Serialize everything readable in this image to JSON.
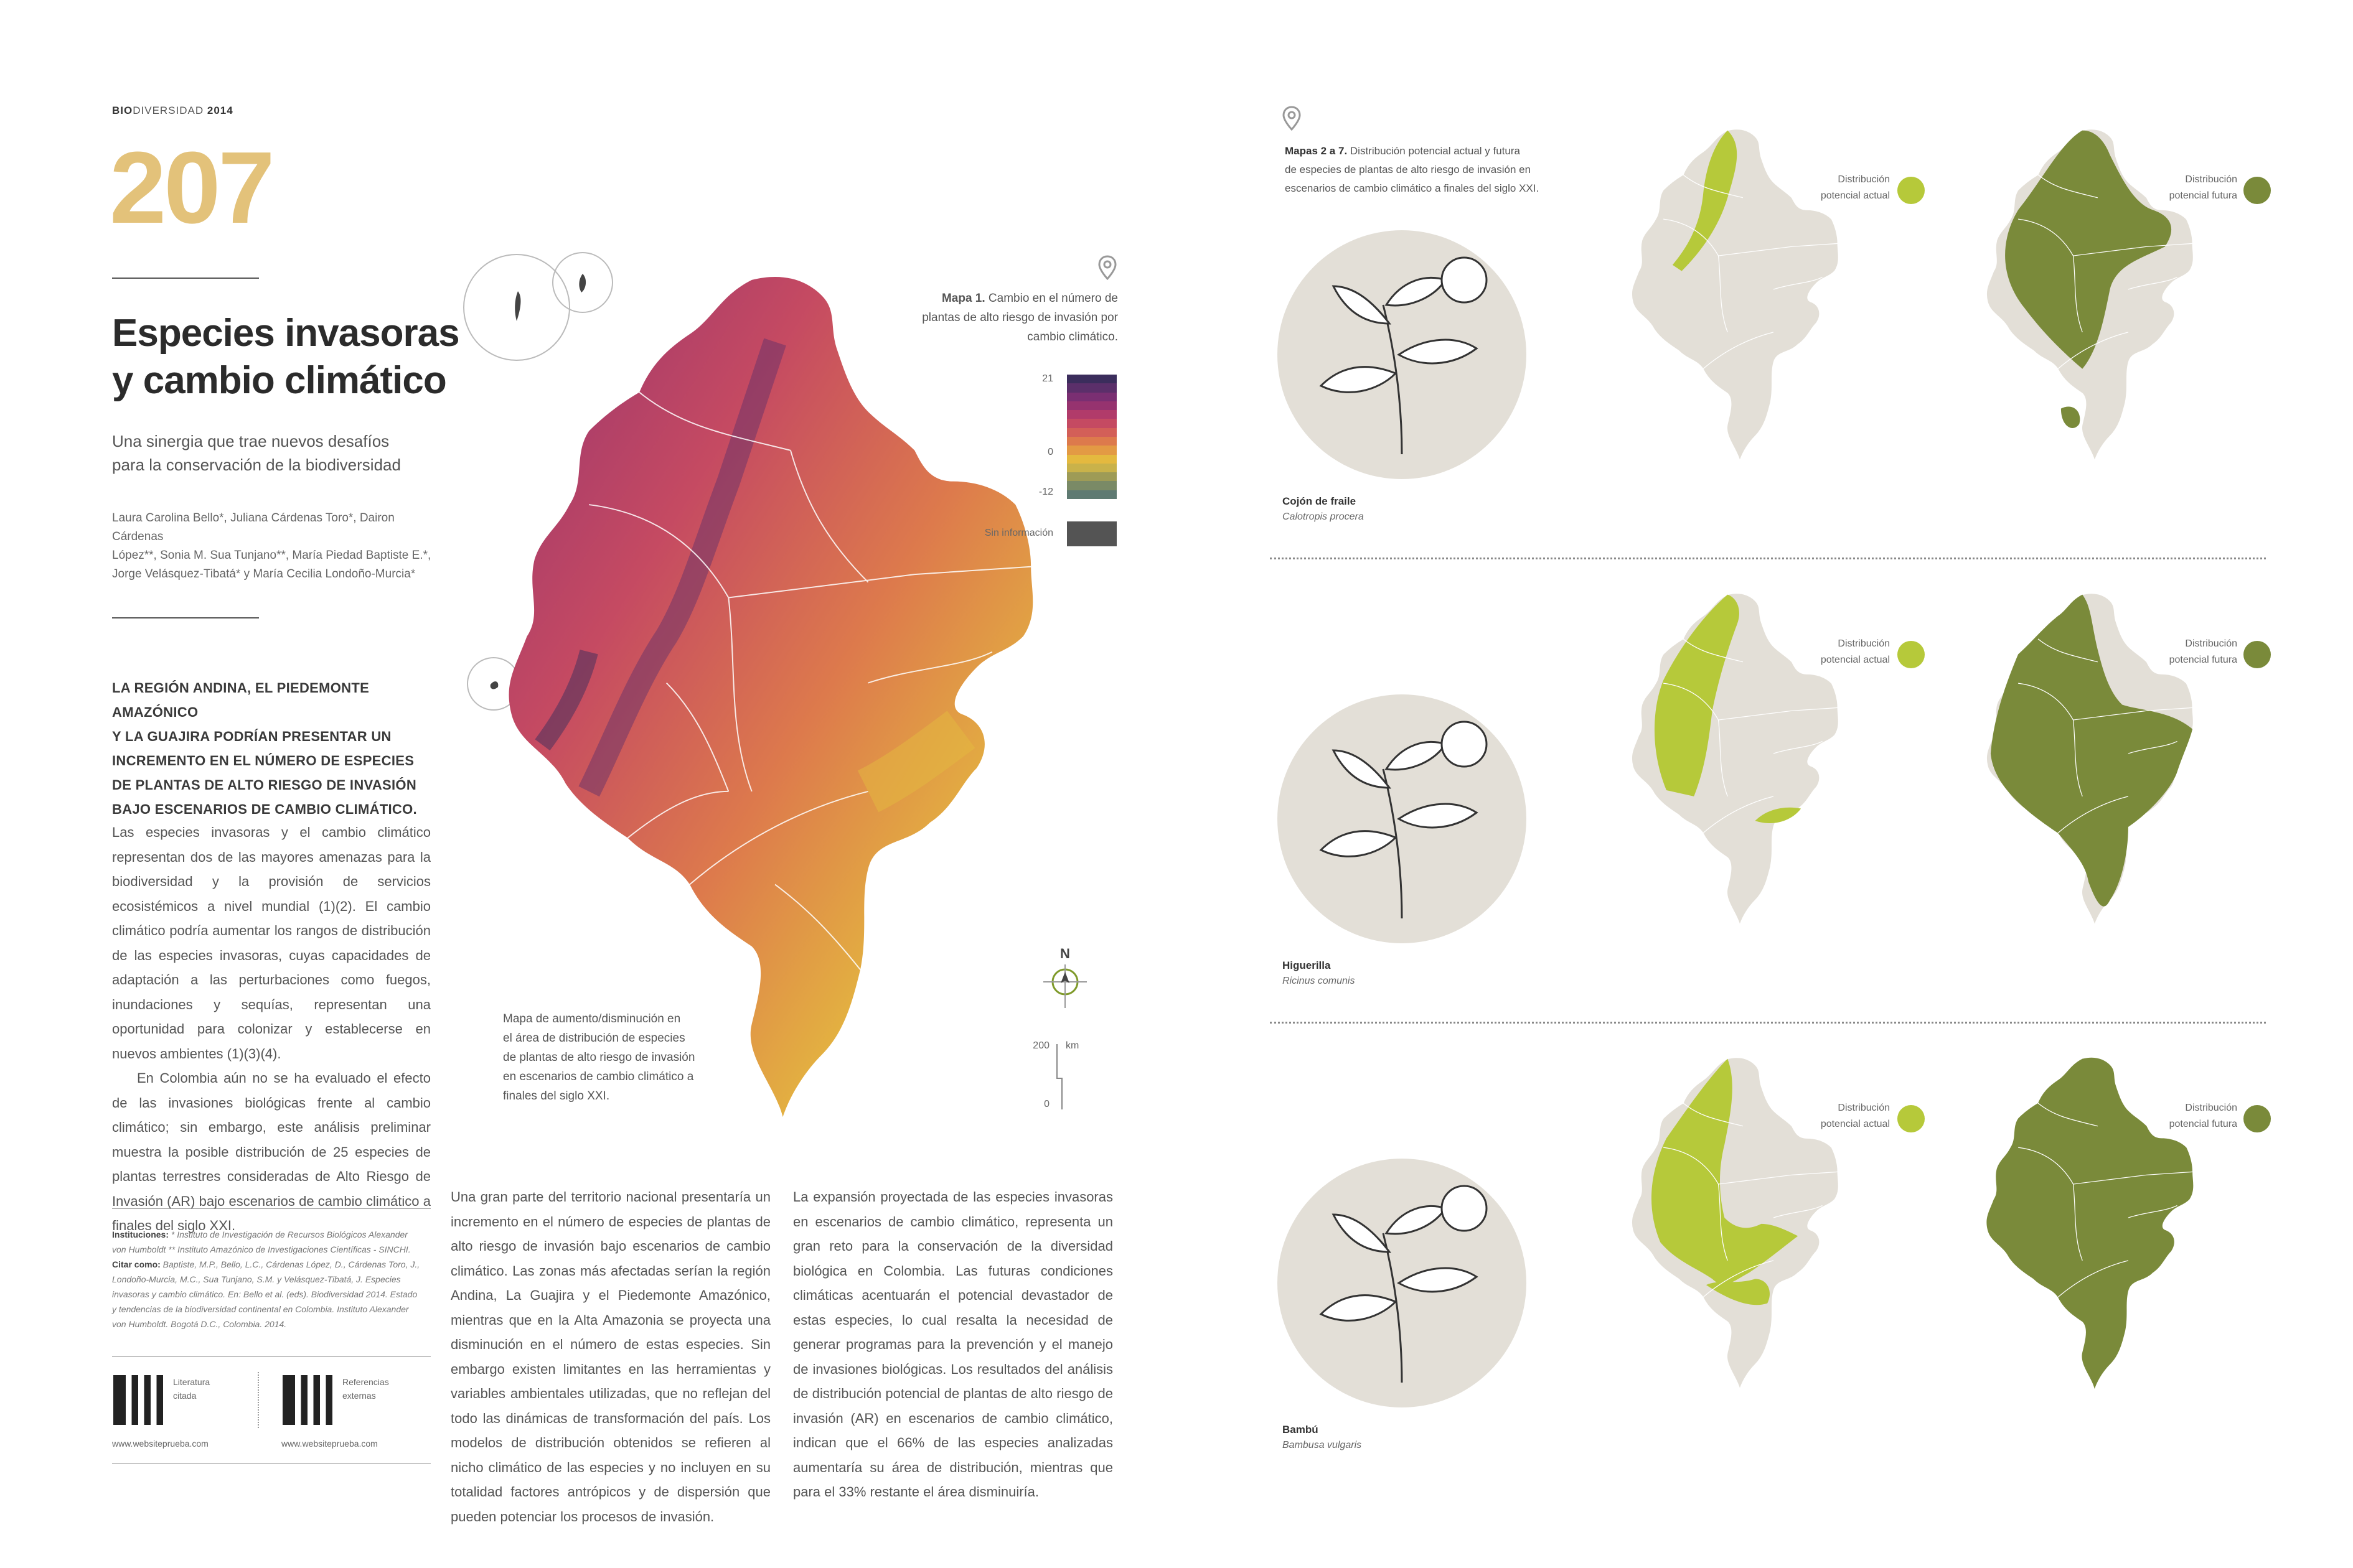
{
  "header": {
    "bold": "BIO",
    "rest": "DIVERSIDAD",
    "year": "2014"
  },
  "page_number": "207",
  "title_line1": "Especies invasoras",
  "title_line2": "y cambio climático",
  "subtitle_line1": "Una sinergia que trae nuevos desafíos",
  "subtitle_line2": "para la conservación de la biodiversidad",
  "authors": [
    "Laura Carolina Bello*, Juliana Cárdenas Toro*, Dairon Cárdenas",
    "López**, Sonia M. Sua Tunjano**, María Piedad Baptiste E.*,",
    "Jorge Velásquez-Tibatá* y María Cecilia Londoño-Murcia*"
  ],
  "lead": [
    "LA REGIÓN ANDINA, EL PIEDEMONTE AMAZÓNICO",
    "Y LA GUAJIRA PODRÍAN PRESENTAR UN",
    "INCREMENTO EN EL NÚMERO DE ESPECIES",
    "DE PLANTAS DE ALTO RIESGO DE INVASIÓN",
    "BAJO ESCENARIOS DE CAMBIO CLIMÁTICO."
  ],
  "col1_p1": "Las especies invasoras y el cambio climático representan dos de las mayores amenazas para la biodiversidad y la provisión de servicios ecosistémicos a nivel mundial (1)(2). El cambio climático podría aumentar los rangos de distribución de las especies invasoras, cuyas capacidades de adaptación a las perturbaciones como fuegos, inundaciones y sequías, representan una oportunidad para colonizar y establecerse en nuevos ambientes (1)(3)(4).",
  "col1_p2": "En Colombia aún no se ha evaluado el efecto de las invasiones biológicas frente al cambio climático; sin embargo, este análisis preliminar muestra la posible distribución de 25 especies de plantas terrestres consideradas de Alto Riesgo de Invasión (AR) bajo escenarios de cambio climático a finales del siglo XXI.",
  "institutions": {
    "label": "Instituciones:",
    "text": " * Instituto de Investigación de Recursos Biológicos Alexander von Humboldt ** Instituto Amazónico de Investigaciones Científicas - SINCHI.",
    "cite_label": " Citar como:",
    "cite_text": " Baptiste, M.P., Bello, L.C., Cárdenas López, D., Cárdenas Toro, J., Londoño-Murcia, M.C., Sua Tunjano, S.M. y Velásquez-Tibatá, J. Especies invasoras y cambio climático. En: Bello et al. (eds). Biodiversidad 2014. Estado y tendencias de la biodiversidad continental en Colombia. Instituto Alexander von Humboldt. Bogotá D.C., Colombia. 2014."
  },
  "qr": [
    {
      "label1": "Literatura",
      "label2": "citada",
      "url": "www.websiteprueba.com"
    },
    {
      "label1": "Referencias",
      "label2": "externas",
      "url": "www.websiteprueba.com"
    }
  ],
  "col2": "Una gran parte del territorio nacional presentaría un incremento en el número de especies de plantas de alto riesgo de invasión bajo escenarios de cambio climático. Las zonas más afectadas serían la región Andina, La Guajira y el Piedemonte Amazónico, mientras que en la Alta Amazonia se proyecta una disminución en el número de estas especies. Sin embargo existen limitantes en las herramientas y variables ambientales utilizadas, que no reflejan del todo las dinámicas de transformación del país. Los modelos de distribución obtenidos se refieren al nicho climático de las especies y no incluyen en su totalidad factores antrópicos y de dispersión que pueden potenciar los procesos de invasión.",
  "col3": "La expansión proyectada de las especies invasoras en escenarios de cambio climático, representa un gran reto para la conservación de la diversidad biológica en Colombia. Las futuras condiciones climáticas acentuarán el potencial devastador de estas especies, lo cual resalta la necesidad de generar programas para la prevención y el manejo de invasiones biológicas. Los resultados del análisis de distribución potencial de plantas de alto riesgo de invasión (AR) en escenarios de cambio climático, indican que el 66% de las especies analizadas aumentaría su área de distribución, mientras que para el 33% restante el área disminuiría.",
  "map1": {
    "title_bold": "Mapa 1.",
    "title_lines": [
      "Cambio en el número de",
      "plantas de alto riesgo de invasión por",
      "cambio climático."
    ],
    "legend_ticks": [
      "21",
      "0",
      "-12"
    ],
    "no_info": "Sin información",
    "colors": [
      "#3b2d5c",
      "#5b2f6a",
      "#7a2f72",
      "#96336f",
      "#b13b6a",
      "#c54a62",
      "#d35f58",
      "#dd7a4c",
      "#e39a44",
      "#e4b93f",
      "#c9b24a",
      "#9e9b56",
      "#7a8a66",
      "#5f7a72"
    ],
    "no_info_color": "#545454",
    "caption": [
      "Mapa de aumento/disminución en",
      "el área de distribución de especies",
      "de plantas de alto riesgo de invasión",
      "en escenarios de cambio climático a",
      "finales del siglo XXI."
    ],
    "north": "N",
    "scale_ticks": [
      "200",
      "0"
    ],
    "scale_unit": "km"
  },
  "maps27": {
    "title_bold": "Mapas 2 a 7.",
    "title_lines": [
      "Distribución potencial actual y futura",
      "de especies de plantas de alto riesgo de invasión en",
      "escenarios de cambio climático a finales del siglo XXI."
    ],
    "actual_color": "#b6c93a",
    "future_color": "#7a8a3a",
    "base_color": "#e3dfd7",
    "rows": [
      {
        "name": "Cojón de fraile",
        "sci": "Calotropis procera",
        "actual_l1": "Distribución",
        "actual_l2": "potencial actual",
        "future_l1": "Distribución",
        "future_l2": "potencial futura"
      },
      {
        "name": "Higuerilla",
        "sci": "Ricinus comunis",
        "actual_l1": "Distribución",
        "actual_l2": "potencial actual",
        "future_l1": "Distribución",
        "future_l2": "potencial futura"
      },
      {
        "name": "Bambú",
        "sci": "Bambusa vulgaris",
        "actual_l1": "Distribución",
        "actual_l2": "potencial actual",
        "future_l1": "Distribución",
        "future_l2": "potencial futura"
      }
    ]
  }
}
